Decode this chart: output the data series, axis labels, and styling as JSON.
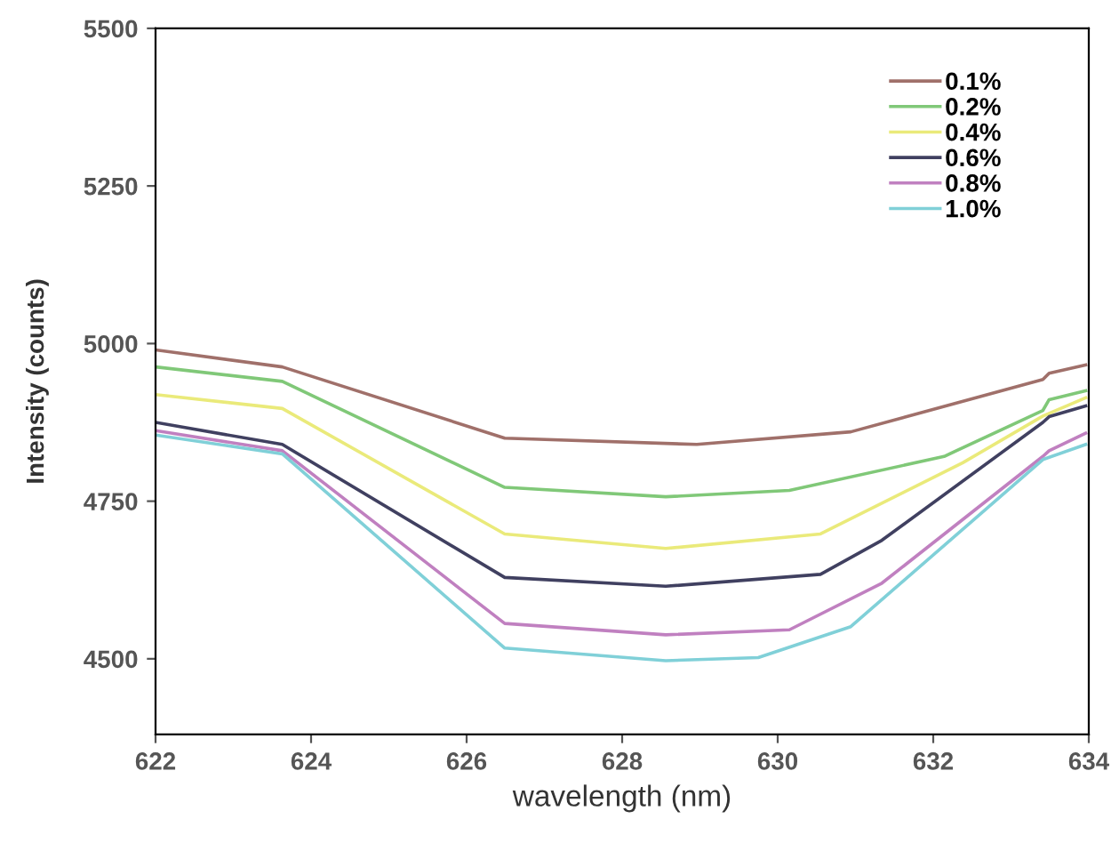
{
  "chart_data": {
    "type": "line",
    "xlabel": "wavelength (nm)",
    "ylabel": "Intensity (counts)",
    "xlim": [
      622,
      634
    ],
    "xticks": [
      622,
      624,
      626,
      628,
      630,
      632,
      634
    ],
    "ylim": [
      4380,
      5500
    ],
    "yticks": [
      4500,
      4750,
      5000,
      5250,
      5500
    ],
    "grid": false,
    "legend": "top right",
    "marker": "none",
    "line_style": "solid",
    "series": [
      {
        "name": "0.1%",
        "color": "#a0706a",
        "x": [
          622,
          623.63,
          626.49,
          628.96,
          630.94,
          633.41,
          633.49,
          633.96
        ],
        "values": [
          4990,
          4963,
          4850,
          4840,
          4860,
          4943,
          4953,
          4966
        ]
      },
      {
        "name": "0.2%",
        "color": "#80c878",
        "x": [
          622,
          623.63,
          626.49,
          628.56,
          630.15,
          632.14,
          633.41,
          633.49,
          633.96
        ],
        "values": [
          4963,
          4940,
          4772,
          4757,
          4767,
          4821,
          4894,
          4911,
          4925
        ]
      },
      {
        "name": "0.4%",
        "color": "#eaea7a",
        "x": [
          622,
          623.63,
          626.49,
          628.56,
          630.55,
          632.38,
          633.41,
          633.96
        ],
        "values": [
          4919,
          4897,
          4698,
          4675,
          4698,
          4811,
          4885,
          4914
        ]
      },
      {
        "name": "0.6%",
        "color": "#404060",
        "x": [
          622,
          623.63,
          626.49,
          628.56,
          630.55,
          631.34,
          633.41,
          633.49,
          633.96
        ],
        "values": [
          4875,
          4840,
          4629,
          4615,
          4634,
          4688,
          4875,
          4884,
          4901
        ]
      },
      {
        "name": "0.8%",
        "color": "#c080c0",
        "x": [
          622,
          623.63,
          626.49,
          628.56,
          630.15,
          631.34,
          633.41,
          633.49,
          633.96
        ],
        "values": [
          4862,
          4830,
          4556,
          4538,
          4546,
          4620,
          4821,
          4830,
          4858
        ]
      },
      {
        "name": "1.0%",
        "color": "#80d0d8",
        "x": [
          622,
          623.63,
          626.49,
          628.56,
          629.75,
          630.94,
          633.41,
          633.96
        ],
        "values": [
          4855,
          4825,
          4517,
          4497,
          4502,
          4551,
          4816,
          4840
        ]
      }
    ]
  }
}
